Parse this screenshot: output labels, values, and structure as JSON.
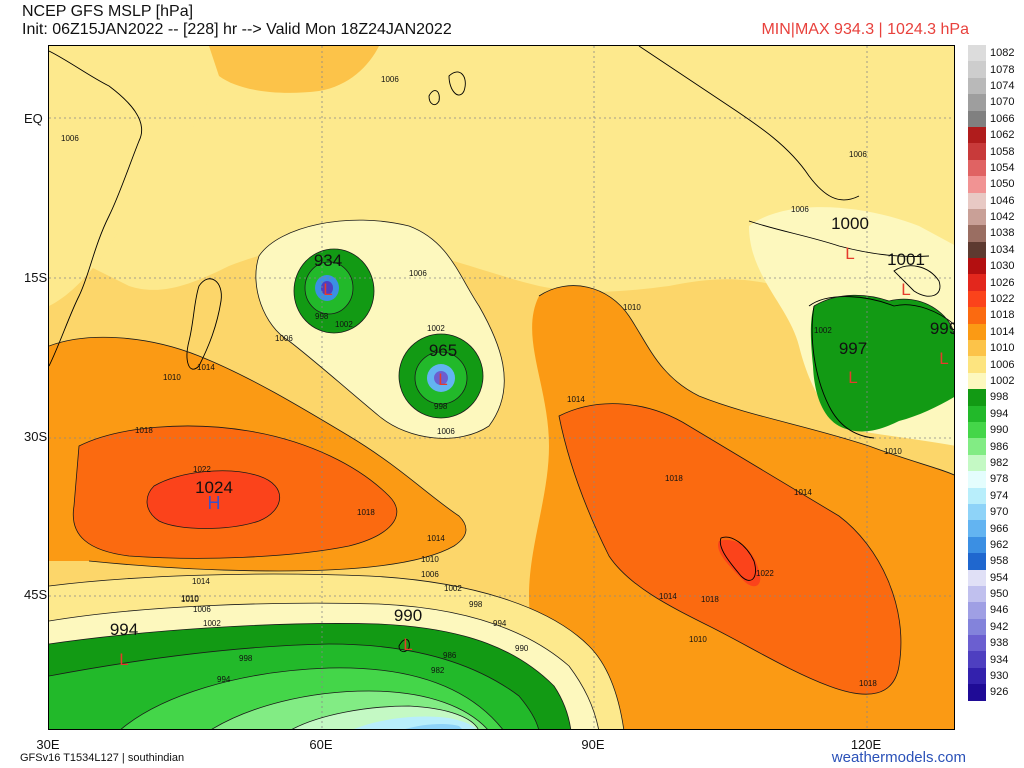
{
  "header": {
    "title": "NCEP GFS MSLP [hPa]",
    "init": "Init: 06Z15JAN2022 -- [228] hr --> Valid Mon 18Z24JAN2022",
    "minmax": "MIN|MAX 934.3 | 1024.3 hPa"
  },
  "axes": {
    "lat_labels": [
      "EQ",
      "15S",
      "30S",
      "45S"
    ],
    "lon_labels": [
      "30E",
      "60E",
      "90E",
      "120E"
    ]
  },
  "legend": {
    "levels": [
      {
        "label": "1082",
        "color": "#dcdcdc"
      },
      {
        "label": "1078",
        "color": "#cdcdcd"
      },
      {
        "label": "1074",
        "color": "#b9b9b9"
      },
      {
        "label": "1070",
        "color": "#9e9e9e"
      },
      {
        "label": "1066",
        "color": "#808080"
      },
      {
        "label": "1062",
        "color": "#b01c1c"
      },
      {
        "label": "1058",
        "color": "#c83a3a"
      },
      {
        "label": "1054",
        "color": "#e06363"
      },
      {
        "label": "1050",
        "color": "#f19393"
      },
      {
        "label": "1046",
        "color": "#e8c9c4"
      },
      {
        "label": "1042",
        "color": "#c9a097"
      },
      {
        "label": "1038",
        "color": "#9a6e62"
      },
      {
        "label": "1034",
        "color": "#5d3a30"
      },
      {
        "label": "1030",
        "color": "#b30f10"
      },
      {
        "label": "1026",
        "color": "#e3271d"
      },
      {
        "label": "1022",
        "color": "#fb431b"
      },
      {
        "label": "1018",
        "color": "#fb6a10"
      },
      {
        "label": "1014",
        "color": "#fb9a14"
      },
      {
        "label": "1010",
        "color": "#fcc349"
      },
      {
        "label": "1006",
        "color": "#fde47f"
      },
      {
        "label": "1002",
        "color": "#fdf8be"
      },
      {
        "label": "998",
        "color": "#129a14"
      },
      {
        "label": "994",
        "color": "#22b92a"
      },
      {
        "label": "990",
        "color": "#44d649"
      },
      {
        "label": "986",
        "color": "#82ec84"
      },
      {
        "label": "982",
        "color": "#c4f9c4"
      },
      {
        "label": "978",
        "color": "#e4fdfd"
      },
      {
        "label": "974",
        "color": "#b8eefb"
      },
      {
        "label": "970",
        "color": "#8ed3f8"
      },
      {
        "label": "966",
        "color": "#63b4f1"
      },
      {
        "label": "962",
        "color": "#3b8fe3"
      },
      {
        "label": "958",
        "color": "#1f67cf"
      },
      {
        "label": "954",
        "color": "#e0e0f6"
      },
      {
        "label": "950",
        "color": "#c0c0ee"
      },
      {
        "label": "946",
        "color": "#9f9fe4"
      },
      {
        "label": "942",
        "color": "#8383db"
      },
      {
        "label": "938",
        "color": "#6b5fd0"
      },
      {
        "label": "934",
        "color": "#4e3fc0"
      },
      {
        "label": "930",
        "color": "#3321ad"
      },
      {
        "label": "926",
        "color": "#1f0b96"
      }
    ]
  },
  "pressure_centers": [
    {
      "value": "934",
      "type": "L"
    },
    {
      "value": "965",
      "type": "L"
    },
    {
      "value": "1024",
      "type": "H"
    },
    {
      "value": "1000",
      "type": "L"
    },
    {
      "value": "1001",
      "type": "L"
    },
    {
      "value": "997",
      "type": "L"
    },
    {
      "value": "999",
      "type": "L"
    },
    {
      "value": "994",
      "type": "L"
    },
    {
      "value": "990",
      "type": "L"
    }
  ],
  "contour_labels": [
    "1006",
    "1006",
    "1006",
    "1006",
    "1006",
    "1002",
    "1002",
    "998",
    "998",
    "1010",
    "1014",
    "1018",
    "1022",
    "1018",
    "1014",
    "1010",
    "1010",
    "1006",
    "1002",
    "1014",
    "1010",
    "1006",
    "1002",
    "998",
    "994",
    "990",
    "986",
    "982",
    "998",
    "994",
    "1010",
    "1014",
    "1018",
    "1014",
    "1018",
    "1022",
    "1018",
    "1014",
    "1010",
    "1010",
    "1006",
    "1006",
    "1002"
  ],
  "footer": {
    "model": "GFSv16 T1534L127 | southindian",
    "brand": "weathermodels.com"
  }
}
